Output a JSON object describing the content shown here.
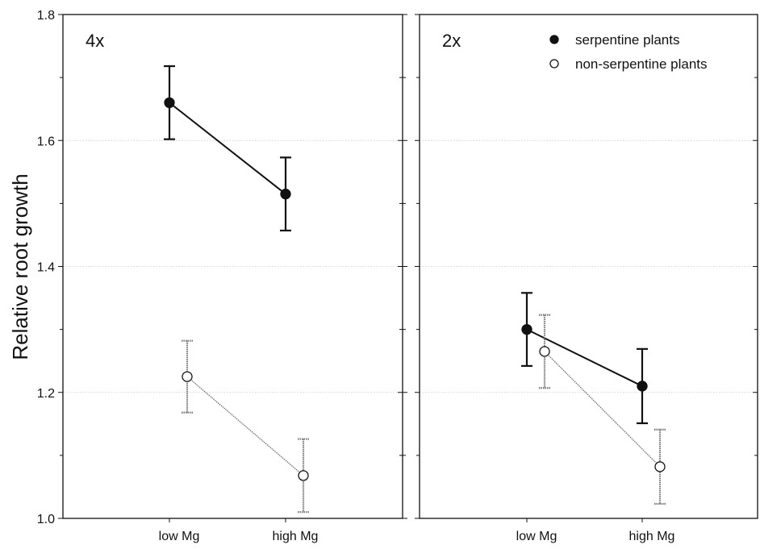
{
  "chart_data": {
    "type": "line",
    "ylabel": "Relative root growth",
    "ylim": [
      1.0,
      1.8
    ],
    "yticks": [
      "1.0",
      "1.2",
      "1.4",
      "1.6",
      "1.8"
    ],
    "ytick_values": [
      1.0,
      1.2,
      1.4,
      1.6,
      1.8
    ],
    "categories": [
      "low Mg",
      "high Mg"
    ],
    "grid": "horizontal dotted at 1.2, 1.4, 1.6",
    "legend": {
      "placement": "top-right of right panel",
      "entries": [
        {
          "name": "serpentine plants",
          "marker": "filled circle"
        },
        {
          "name": "non-serpentine plants",
          "marker": "open circle"
        }
      ]
    },
    "panels": [
      {
        "label": "4x",
        "series": [
          {
            "name": "serpentine plants",
            "values": [
              1.66,
              1.515
            ],
            "errors": [
              0.058,
              0.058
            ]
          },
          {
            "name": "non-serpentine plants",
            "values": [
              1.225,
              1.068
            ],
            "errors": [
              0.057,
              0.058
            ]
          }
        ]
      },
      {
        "label": "2x",
        "series": [
          {
            "name": "serpentine plants",
            "values": [
              1.3,
              1.21
            ],
            "errors": [
              0.058,
              0.059
            ]
          },
          {
            "name": "non-serpentine plants",
            "values": [
              1.265,
              1.082
            ],
            "errors": [
              0.058,
              0.059
            ]
          }
        ]
      }
    ]
  }
}
